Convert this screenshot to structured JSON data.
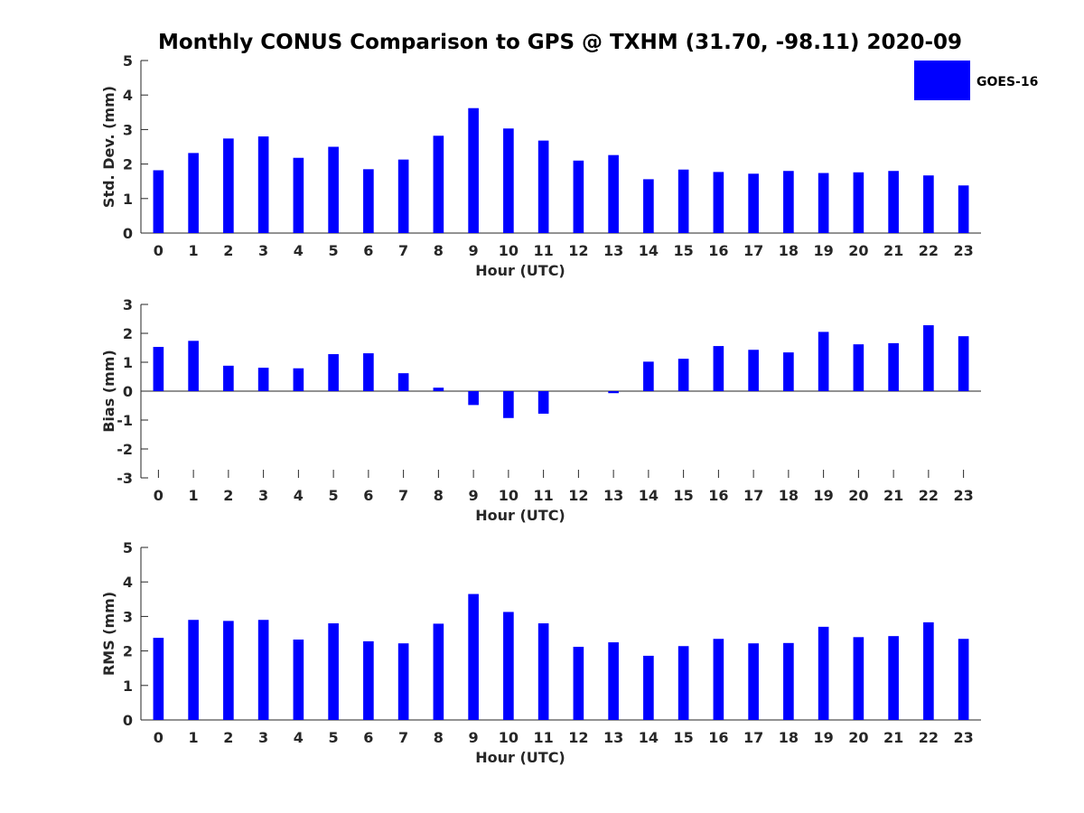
{
  "title": "Monthly CONUS Comparison to GPS @ TXHM (31.70, -98.11) 2020-09",
  "legend": {
    "label": "GOES-16",
    "color": "#0000ff",
    "placement": "top-right"
  },
  "chart_data": [
    {
      "type": "bar",
      "xlabel": "Hour (UTC)",
      "ylabel": "Std. Dev. (mm)",
      "categories": [
        "0",
        "1",
        "2",
        "3",
        "4",
        "5",
        "6",
        "7",
        "8",
        "9",
        "10",
        "11",
        "12",
        "13",
        "14",
        "15",
        "16",
        "17",
        "18",
        "19",
        "20",
        "21",
        "22",
        "23"
      ],
      "ylim": [
        0,
        5
      ],
      "yticks": [
        0,
        1,
        2,
        3,
        4,
        5
      ],
      "grid": false,
      "series": [
        {
          "name": "GOES-16",
          "color": "#0000ff",
          "values": [
            1.82,
            2.32,
            2.74,
            2.8,
            2.18,
            2.5,
            1.85,
            2.13,
            2.82,
            3.62,
            3.03,
            2.68,
            2.1,
            2.26,
            1.56,
            1.84,
            1.77,
            1.72,
            1.8,
            1.74,
            1.76,
            1.8,
            1.67,
            1.38
          ]
        }
      ]
    },
    {
      "type": "bar",
      "xlabel": "Hour (UTC)",
      "ylabel": "Bias (mm)",
      "categories": [
        "0",
        "1",
        "2",
        "3",
        "4",
        "5",
        "6",
        "7",
        "8",
        "9",
        "10",
        "11",
        "12",
        "13",
        "14",
        "15",
        "16",
        "17",
        "18",
        "19",
        "20",
        "21",
        "22",
        "23"
      ],
      "ylim": [
        -3,
        3
      ],
      "yticks": [
        -3,
        -2,
        -1,
        0,
        1,
        2,
        3
      ],
      "grid": false,
      "series": [
        {
          "name": "GOES-16",
          "color": "#0000ff",
          "values": [
            1.53,
            1.74,
            0.88,
            0.81,
            0.79,
            1.28,
            1.31,
            0.62,
            0.12,
            -0.48,
            -0.93,
            -0.78,
            0.0,
            -0.07,
            1.02,
            1.12,
            1.56,
            1.43,
            1.34,
            2.05,
            1.62,
            1.66,
            2.28,
            1.9
          ]
        }
      ]
    },
    {
      "type": "bar",
      "xlabel": "Hour (UTC)",
      "ylabel": "RMS (mm)",
      "categories": [
        "0",
        "1",
        "2",
        "3",
        "4",
        "5",
        "6",
        "7",
        "8",
        "9",
        "10",
        "11",
        "12",
        "13",
        "14",
        "15",
        "16",
        "17",
        "18",
        "19",
        "20",
        "21",
        "22",
        "23"
      ],
      "ylim": [
        0,
        5
      ],
      "yticks": [
        0,
        1,
        2,
        3,
        4,
        5
      ],
      "grid": false,
      "series": [
        {
          "name": "GOES-16",
          "color": "#0000ff",
          "values": [
            2.38,
            2.9,
            2.87,
            2.9,
            2.33,
            2.8,
            2.28,
            2.22,
            2.79,
            3.65,
            3.13,
            2.8,
            2.12,
            2.25,
            1.86,
            2.14,
            2.35,
            2.22,
            2.23,
            2.7,
            2.4,
            2.43,
            2.83,
            2.35
          ]
        }
      ]
    }
  ]
}
